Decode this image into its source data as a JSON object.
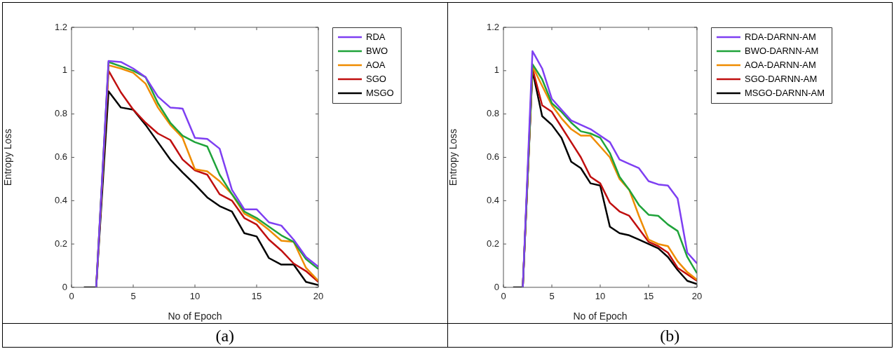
{
  "chart_data": [
    {
      "type": "line",
      "xlabel": "No of Epoch",
      "ylabel": "Entropy Loss",
      "x": [
        1,
        2,
        3,
        4,
        5,
        6,
        7,
        8,
        9,
        10,
        11,
        12,
        13,
        14,
        15,
        16,
        17,
        18,
        19,
        20
      ],
      "xlim": [
        0,
        20
      ],
      "xticks": [
        0,
        5,
        10,
        15,
        20
      ],
      "ylim": [
        0,
        1.2
      ],
      "yticks": [
        0,
        0.2,
        0.4,
        0.6,
        0.8,
        1,
        1.2
      ],
      "legend": "top right",
      "grid": false,
      "marker": "none",
      "line_style": "solid",
      "annotations": [
        "(a)"
      ],
      "series": [
        {
          "name": "RDA",
          "color": "#7e3ff2",
          "values": [
            null,
            0,
            1.045,
            1.04,
            1.01,
            0.97,
            0.88,
            0.83,
            0.825,
            0.69,
            0.685,
            0.64,
            0.45,
            0.36,
            0.36,
            0.3,
            0.285,
            0.22,
            0.14,
            0.095
          ]
        },
        {
          "name": "BWO",
          "color": "#1fa33a",
          "values": [
            null,
            0,
            1.04,
            1.02,
            1.0,
            0.97,
            0.85,
            0.76,
            0.7,
            0.67,
            0.65,
            0.52,
            0.43,
            0.35,
            0.32,
            0.28,
            0.24,
            0.21,
            0.13,
            0.085
          ]
        },
        {
          "name": "AOA",
          "color": "#ef8c00",
          "values": [
            null,
            0,
            1.025,
            1.01,
            0.99,
            0.94,
            0.83,
            0.75,
            0.69,
            0.545,
            0.535,
            0.49,
            0.43,
            0.34,
            0.31,
            0.265,
            0.215,
            0.21,
            0.09,
            0.03
          ]
        },
        {
          "name": "SGO",
          "color": "#c00f0f",
          "values": [
            null,
            0,
            1.0,
            0.9,
            0.82,
            0.76,
            0.71,
            0.68,
            0.59,
            0.54,
            0.52,
            0.43,
            0.4,
            0.32,
            0.29,
            0.22,
            0.17,
            0.11,
            0.075,
            0.025
          ]
        },
        {
          "name": "MSGO",
          "color": "#000000",
          "values": [
            0,
            0,
            0.905,
            0.83,
            0.82,
            0.75,
            0.67,
            0.59,
            0.53,
            0.475,
            0.415,
            0.375,
            0.35,
            0.25,
            0.235,
            0.135,
            0.105,
            0.105,
            0.025,
            0.01
          ]
        }
      ]
    },
    {
      "type": "line",
      "xlabel": "No of Epoch",
      "ylabel": "Entropy Loss",
      "x": [
        1,
        2,
        3,
        4,
        5,
        6,
        7,
        8,
        9,
        10,
        11,
        12,
        13,
        14,
        15,
        16,
        17,
        18,
        19,
        20
      ],
      "xlim": [
        0,
        20
      ],
      "xticks": [
        0,
        5,
        10,
        15,
        20
      ],
      "ylim": [
        0,
        1.2
      ],
      "yticks": [
        0,
        0.2,
        0.4,
        0.6,
        0.8,
        1,
        1.2
      ],
      "legend": "top right",
      "grid": false,
      "marker": "none",
      "line_style": "solid",
      "annotations": [
        "(b)"
      ],
      "series": [
        {
          "name": "RDA-DARNN-AM",
          "color": "#7e3ff2",
          "values": [
            null,
            0,
            1.09,
            1.01,
            0.87,
            0.82,
            0.77,
            0.75,
            0.73,
            0.7,
            0.67,
            0.59,
            0.57,
            0.55,
            0.49,
            0.475,
            0.47,
            0.41,
            0.16,
            0.11
          ]
        },
        {
          "name": "BWO-DARNN-AM",
          "color": "#1fa33a",
          "values": [
            null,
            0,
            1.03,
            0.96,
            0.85,
            0.81,
            0.76,
            0.72,
            0.71,
            0.69,
            0.62,
            0.51,
            0.45,
            0.38,
            0.335,
            0.33,
            0.29,
            0.26,
            0.14,
            0.065
          ]
        },
        {
          "name": "AOA-DARNN-AM",
          "color": "#ef8c00",
          "values": [
            null,
            0,
            1.02,
            0.93,
            0.84,
            0.78,
            0.73,
            0.7,
            0.7,
            0.65,
            0.6,
            0.5,
            0.45,
            0.33,
            0.22,
            0.2,
            0.19,
            0.12,
            0.07,
            0.035
          ]
        },
        {
          "name": "SGO-DARNN-AM",
          "color": "#c00f0f",
          "values": [
            null,
            0,
            1.01,
            0.84,
            0.81,
            0.74,
            0.67,
            0.6,
            0.51,
            0.48,
            0.39,
            0.35,
            0.33,
            0.27,
            0.21,
            0.19,
            0.16,
            0.09,
            0.06,
            0.03
          ]
        },
        {
          "name": "MSGO-DARNN-AM",
          "color": "#000000",
          "values": [
            0,
            0,
            1.0,
            0.79,
            0.75,
            0.69,
            0.58,
            0.55,
            0.48,
            0.47,
            0.28,
            0.25,
            0.24,
            0.22,
            0.2,
            0.18,
            0.14,
            0.08,
            0.03,
            0.015
          ]
        }
      ]
    }
  ]
}
